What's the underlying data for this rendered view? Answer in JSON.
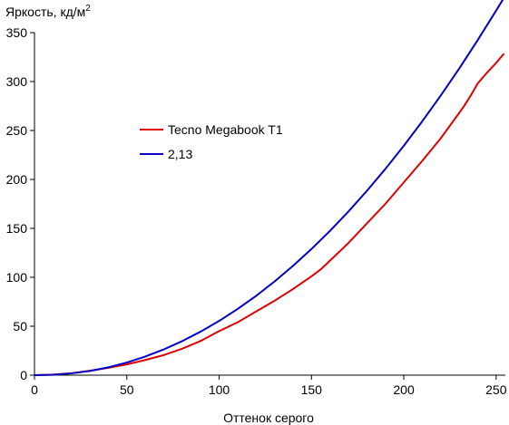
{
  "chart_data": {
    "type": "line",
    "ylabel": "Яркость, кд/м",
    "ylabel_sup": "2",
    "xlabel": "Оттенок серого",
    "xlim": [
      0,
      255
    ],
    "ylim": [
      0,
      350
    ],
    "x_ticks": [
      "0",
      "50",
      "100",
      "150",
      "200",
      "250"
    ],
    "y_ticks": [
      "0",
      "50",
      "100",
      "150",
      "200",
      "250",
      "300",
      "350"
    ],
    "grid": false,
    "legend_position": "upper-left-center",
    "series": [
      {
        "name": "Tecno Megabook T1",
        "color": "#e00000",
        "x": [
          0,
          10,
          20,
          30,
          40,
          50,
          60,
          70,
          80,
          90,
          100,
          110,
          120,
          130,
          140,
          150,
          155,
          160,
          170,
          180,
          190,
          200,
          210,
          220,
          230,
          233,
          236,
          240,
          245,
          250,
          254
        ],
        "values": [
          0,
          0.6,
          2,
          4.5,
          7.5,
          11,
          15.5,
          20.5,
          27,
          35,
          45,
          54,
          65,
          76,
          88,
          101,
          108,
          117,
          135,
          155,
          175,
          197,
          219,
          242,
          268,
          276,
          285,
          298,
          309,
          319,
          328
        ]
      },
      {
        "name": "2,13",
        "color": "#0000c8",
        "x": [
          0,
          10,
          20,
          30,
          40,
          50,
          60,
          70,
          80,
          90,
          100,
          110,
          120,
          130,
          140,
          150,
          160,
          170,
          180,
          190,
          200,
          210,
          220,
          230,
          240,
          250,
          255
        ],
        "values": [
          0,
          0.4,
          1.8,
          4.3,
          8,
          12.9,
          19,
          26.3,
          34.8,
          44.5,
          55.4,
          67.6,
          81,
          95.7,
          111.7,
          128.9,
          147.4,
          167.2,
          188.3,
          210.7,
          234.4,
          259.4,
          285.7,
          313.3,
          342.3,
          372.5,
          388
        ]
      }
    ]
  }
}
